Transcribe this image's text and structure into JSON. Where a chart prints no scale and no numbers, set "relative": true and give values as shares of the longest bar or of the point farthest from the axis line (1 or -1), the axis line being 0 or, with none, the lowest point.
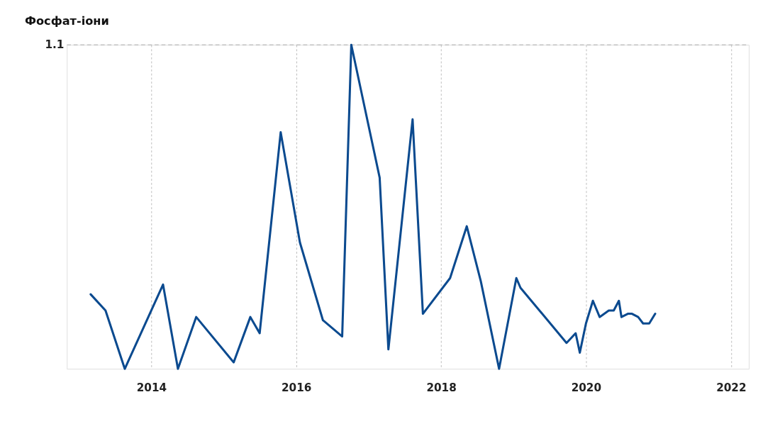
{
  "chart_data": {
    "type": "line",
    "title": "Фосфат-іони",
    "relative": true,
    "x": [
      "2013-03-01",
      "2013-05-15",
      "2013-08-20",
      "2014-03-01",
      "2014-05-15",
      "2014-08-15",
      "2015-02-20",
      "2015-05-15",
      "2015-07-01",
      "2015-10-15",
      "2016-01-20",
      "2016-05-15",
      "2016-08-20",
      "2016-10-05",
      "2017-02-25",
      "2017-04-10",
      "2017-08-10",
      "2017-10-01",
      "2018-02-15",
      "2018-05-10",
      "2018-07-20",
      "2018-10-20",
      "2019-01-15",
      "2019-02-05",
      "2019-09-25",
      "2019-11-10",
      "2019-12-01",
      "2020-01-01",
      "2020-02-05",
      "2020-03-10",
      "2020-04-25",
      "2020-05-20",
      "2020-06-15",
      "2020-06-28",
      "2020-07-30",
      "2020-08-20",
      "2020-09-20",
      "2020-10-15",
      "2020-11-15",
      "2020-12-15"
    ],
    "series": [
      {
        "color": "#0b4a8f",
        "values": [
          0.23,
          0.18,
          0.0,
          0.26,
          0.0,
          0.16,
          0.02,
          0.16,
          0.11,
          0.73,
          0.39,
          0.15,
          0.1,
          1.0,
          0.59,
          0.06,
          0.77,
          0.17,
          0.28,
          0.44,
          0.27,
          0.0,
          0.28,
          0.25,
          0.08,
          0.11,
          0.05,
          0.14,
          0.21,
          0.16,
          0.18,
          0.18,
          0.21,
          0.16,
          0.17,
          0.17,
          0.16,
          0.14,
          0.14,
          0.17
        ]
      }
    ],
    "xlim": [
      "2012-11-01",
      "2022-04-01"
    ],
    "xticks": [
      "2014",
      "2016",
      "2018",
      "2020",
      "2022"
    ],
    "grid": "x",
    "line_style": "solid",
    "marker": "none",
    "annotations": [
      "1.1"
    ],
    "ref_lines": [
      {
        "axis": "y",
        "value": 1,
        "line_style": "dashed"
      }
    ]
  }
}
